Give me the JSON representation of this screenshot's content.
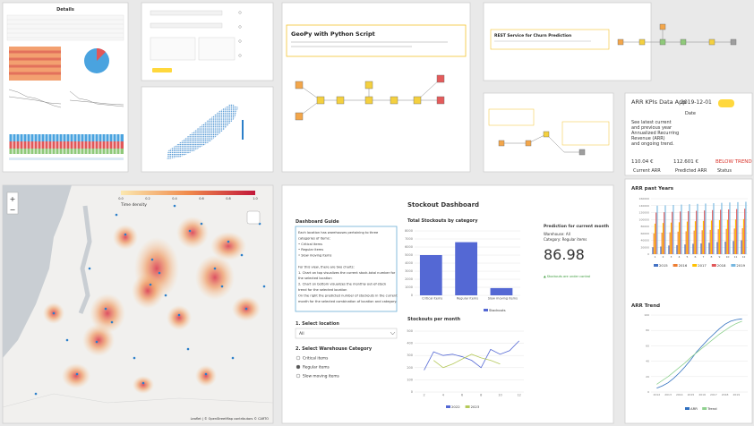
{
  "details": {
    "title": "Details"
  },
  "geopy": {
    "title": "GeoPy with Python Script"
  },
  "rest": {
    "title": "REST Service for Churn Prediction"
  },
  "kpi": {
    "title": "ARR KPIs Data App",
    "date_value": "2019-12-01",
    "date_label": "Date",
    "description": [
      "See latest current",
      "and previous year",
      "Annualized Recurring",
      "Revenue (ARR)",
      "and ongoing trend."
    ],
    "cards": [
      {
        "value": "110.04 €",
        "label": "Current ARR"
      },
      {
        "value": "112.601 €",
        "label": "Predicted ARR"
      },
      {
        "value": "BELOW TREND",
        "label": "Status"
      }
    ]
  },
  "map": {
    "zoom_in": "+",
    "zoom_out": "−",
    "legend_title": "Time density",
    "legend_ticks": [
      "0.0",
      "0.2",
      "0.4",
      "0.6",
      "0.8",
      "1.0"
    ],
    "attribution": "Leaflet | © OpenStreetMap contributors © CARTO"
  },
  "stockout": {
    "title": "Stockout Dashboard",
    "guide_title": "Dashboard Guide",
    "guide_lines": [
      "Each location has warehouses pertaining to three",
      "categories of items:",
      "• Critical items",
      "• Regular items",
      "• Slow moving items",
      "",
      "For this view, there are two charts:",
      "1. Chart on top visualizes the current stock-total number for",
      "the selected location",
      "2. Chart on bottom visualizes the monthly out-of-stock",
      "trend for the selected location",
      "On the right the predicted number of stockouts in the current",
      "month for the selected combination of location and category."
    ],
    "location_label": "1. Select location",
    "location_value": "All",
    "category_label": "2. Select Warehouse Category",
    "category_options": [
      "Critical items",
      "Regular items",
      "Slow moving items"
    ],
    "prediction_title": "Prediction for current month",
    "prediction_warehouse": "Warehouse: All",
    "prediction_category": "Category: Regular items",
    "prediction_value": "86.98",
    "prediction_note": "▲ Stockouts are under control"
  },
  "arr": {
    "title_years": "ARR past Years",
    "title_trend": "ARR Trend"
  },
  "charts": {
    "stockout_bar": {
      "type": "bar",
      "title": "Total Stockouts by category",
      "categories": [
        "Critical items",
        "Regular items",
        "Slow moving items"
      ],
      "series": [
        {
          "name": "Stockouts",
          "color": "#5468d4",
          "values": [
            5000,
            6600,
            900
          ]
        }
      ],
      "ylim": [
        0,
        8000
      ],
      "yticks": [
        0,
        1000,
        2000,
        3000,
        4000,
        5000,
        6000,
        7000,
        8000
      ]
    },
    "stockout_line": {
      "type": "line",
      "title": "Stockouts per month",
      "x": [
        2,
        3,
        4,
        5,
        6,
        7,
        8,
        9,
        10,
        11,
        12
      ],
      "series": [
        {
          "name": "2022",
          "color": "#5468d4",
          "values": [
            180,
            330,
            300,
            310,
            290,
            260,
            200,
            350,
            310,
            340,
            420
          ]
        },
        {
          "name": "2023",
          "color": "#b5c95a",
          "values": [
            null,
            260,
            200,
            230,
            270,
            310,
            280,
            260,
            230,
            null,
            null
          ]
        }
      ],
      "xlim": [
        1,
        12.5
      ],
      "ylim": [
        0,
        500
      ],
      "xticks": [
        2,
        4,
        6,
        8,
        10,
        12
      ],
      "yticks": [
        0,
        100,
        200,
        300,
        400,
        500
      ]
    },
    "arr_years": {
      "type": "bar",
      "categories": [
        1,
        2,
        3,
        4,
        5,
        6,
        7,
        8,
        9,
        10,
        11,
        12
      ],
      "series": [
        {
          "name": "2015",
          "color": "#4472c4",
          "values": [
            20000,
            22000,
            25000,
            26000,
            28000,
            30000,
            31000,
            33000,
            35000,
            36000,
            38000,
            40000
          ]
        },
        {
          "name": "2016",
          "color": "#ed7d31",
          "values": [
            60000,
            62000,
            63000,
            65000,
            66000,
            68000,
            69000,
            70000,
            72000,
            73000,
            74000,
            75000
          ]
        },
        {
          "name": "2017",
          "color": "#ffc000",
          "values": [
            88000,
            90000,
            91000,
            92000,
            94000,
            95000,
            96000,
            97000,
            98000,
            99000,
            100000,
            101000
          ]
        },
        {
          "name": "2018",
          "color": "#e15759",
          "values": [
            120000,
            121000,
            122000,
            123000,
            124000,
            125000,
            126000,
            127000,
            128000,
            129000,
            130000,
            131000
          ]
        },
        {
          "name": "2019",
          "color": "#76b7e0",
          "values": [
            140000,
            141000,
            142000,
            143000,
            144000,
            145000,
            146000,
            147000,
            148000,
            149000,
            150000,
            151000
          ]
        }
      ],
      "ylim": [
        0,
        160000
      ],
      "yticks": [
        0,
        20000,
        40000,
        60000,
        80000,
        100000,
        120000,
        140000,
        160000
      ]
    },
    "arr_trend": {
      "type": "line",
      "x": [
        2012,
        2012.5,
        2013,
        2013.5,
        2014,
        2014.5,
        2015,
        2015.5,
        2016,
        2016.5,
        2017,
        2017.5,
        2018,
        2018.5,
        2019,
        2019.5
      ],
      "series": [
        {
          "name": "ARR",
          "color": "#2f6fbf",
          "values": [
            5,
            8,
            12,
            18,
            25,
            33,
            42,
            52,
            60,
            68,
            75,
            82,
            88,
            92,
            94,
            95
          ]
        },
        {
          "name": "Trend",
          "color": "#8fd18f",
          "values": [
            10,
            15,
            20,
            26,
            32,
            38,
            45,
            51,
            57,
            63,
            69,
            75,
            80,
            85,
            89,
            92
          ]
        }
      ],
      "xlim": [
        2011.5,
        2020
      ],
      "ylim": [
        0,
        100
      ],
      "xticks": [
        2012,
        2013,
        2014,
        2015,
        2016,
        2017,
        2018,
        2019
      ],
      "yticks": [
        0,
        20,
        40,
        60,
        80,
        100
      ]
    }
  }
}
